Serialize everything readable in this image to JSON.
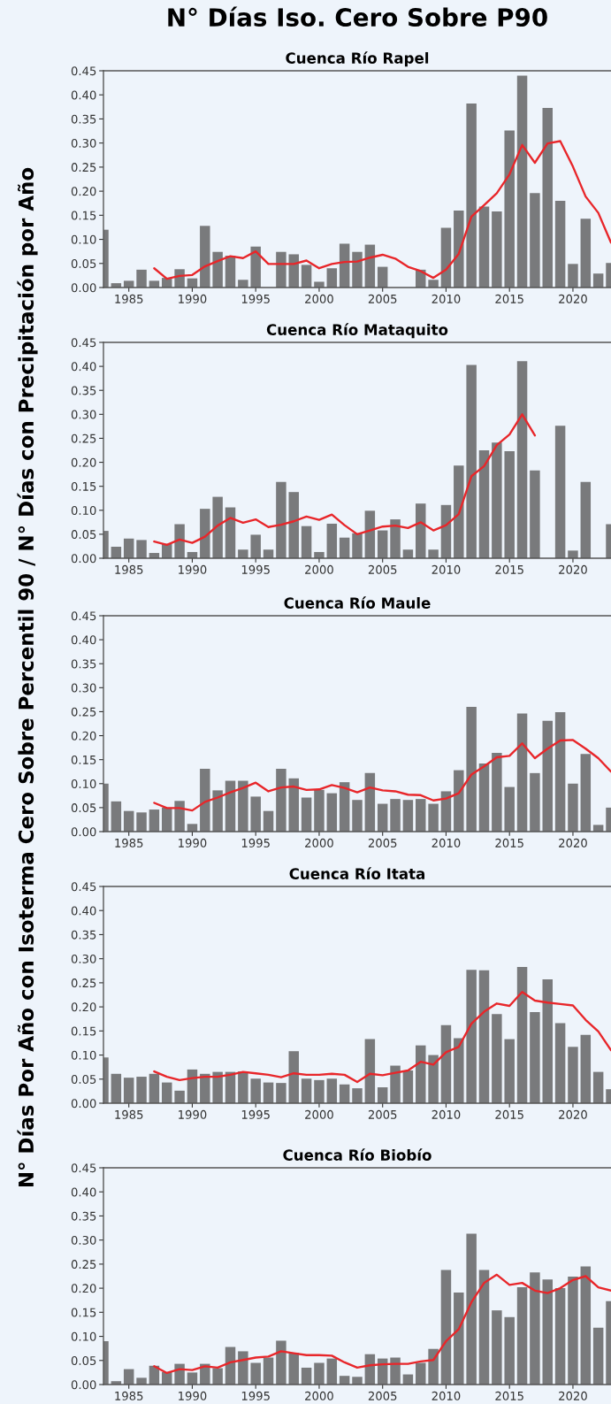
{
  "chart_data": [
    {
      "type": "bar",
      "title": "N° Días Iso. Cero Sobre P90",
      "subtitle": "Cuenca Río Rapel",
      "x": [
        1983,
        1984,
        1985,
        1986,
        1987,
        1988,
        1989,
        1990,
        1991,
        1992,
        1993,
        1994,
        1995,
        1996,
        1997,
        1998,
        1999,
        2000,
        2001,
        2002,
        2003,
        2004,
        2005,
        2006,
        2007,
        2008,
        2009,
        2010,
        2011,
        2012,
        2013,
        2014,
        2015,
        2016,
        2017,
        2018,
        2019,
        2020,
        2021,
        2022,
        2023
      ],
      "series": [
        {
          "color": "#797a7c",
          "values": [
            0.12,
            0.009,
            0.014,
            0.037,
            0.014,
            0.02,
            0.038,
            0.019,
            0.128,
            0.074,
            0.066,
            0.016,
            0.085,
            null,
            0.074,
            0.069,
            0.047,
            0.012,
            0.04,
            0.091,
            0.074,
            0.089,
            0.043,
            null,
            null,
            0.037,
            0.016,
            0.124,
            0.16,
            0.382,
            0.168,
            0.158,
            0.326,
            0.44,
            0.196,
            0.373,
            0.18,
            0.049,
            0.143,
            0.029,
            0.051
          ]
        },
        {
          "type": "line",
          "color": "#e8262a",
          "values": [
            null,
            null,
            null,
            null,
            0.04,
            0.018,
            0.024,
            0.026,
            0.044,
            0.055,
            0.065,
            0.061,
            0.075,
            0.049,
            0.049,
            0.049,
            0.056,
            0.04,
            0.049,
            0.053,
            0.054,
            0.062,
            0.068,
            0.06,
            0.043,
            0.034,
            0.02,
            0.037,
            0.07,
            0.147,
            0.171,
            0.196,
            0.235,
            0.296,
            0.259,
            0.299,
            0.304,
            0.251,
            0.189,
            0.155,
            0.093
          ]
        }
      ],
      "xlim": [
        1983,
        2023
      ],
      "xticks": [
        1985,
        1990,
        1995,
        2000,
        2005,
        2010,
        2015,
        2020
      ],
      "ylim": [
        0,
        0.45
      ],
      "yticks": [
        {
          "value": 0,
          "label": "0.00"
        },
        {
          "value": 0.05,
          "label": "0.05"
        },
        {
          "value": 0.1,
          "label": "0.10"
        },
        {
          "value": 0.15,
          "label": "0.15"
        },
        {
          "value": 0.2,
          "label": "0.20"
        },
        {
          "value": 0.25,
          "label": "0.25"
        },
        {
          "value": 0.3,
          "label": "0.30"
        },
        {
          "value": 0.35,
          "label": "0.35"
        },
        {
          "value": 0.4,
          "label": "0.40"
        },
        {
          "value": 0.45,
          "label": "0.45"
        }
      ]
    },
    {
      "type": "bar",
      "title": "Cuenca Río Mataquito",
      "x": [
        1983,
        1984,
        1985,
        1986,
        1987,
        1988,
        1989,
        1990,
        1991,
        1992,
        1993,
        1994,
        1995,
        1996,
        1997,
        1998,
        1999,
        2000,
        2001,
        2002,
        2003,
        2004,
        2005,
        2006,
        2007,
        2008,
        2009,
        2010,
        2011,
        2012,
        2013,
        2014,
        2015,
        2016,
        2017,
        2018,
        2019,
        2020,
        2021,
        2022,
        2023
      ],
      "series": [
        {
          "color": "#797a7c",
          "values": [
            0.057,
            0.024,
            0.041,
            0.038,
            0.011,
            0.03,
            0.071,
            0.013,
            0.103,
            0.128,
            0.106,
            0.018,
            0.049,
            0.018,
            0.159,
            0.138,
            0.067,
            0.013,
            0.072,
            0.043,
            0.052,
            0.099,
            0.058,
            0.081,
            0.018,
            0.114,
            0.018,
            0.111,
            0.193,
            0.403,
            0.225,
            0.241,
            0.223,
            0.411,
            0.183,
            null,
            0.276,
            0.016,
            0.159,
            null,
            0.071
          ]
        },
        {
          "type": "line",
          "color": "#e8262a",
          "values": [
            null,
            null,
            null,
            null,
            0.035,
            0.028,
            0.039,
            0.032,
            0.045,
            0.068,
            0.084,
            0.074,
            0.081,
            0.065,
            0.07,
            0.077,
            0.087,
            0.08,
            0.091,
            0.069,
            0.05,
            0.058,
            0.066,
            0.068,
            0.063,
            0.075,
            0.058,
            0.069,
            0.092,
            0.171,
            0.192,
            0.236,
            0.258,
            0.3,
            0.256,
            null,
            null,
            null,
            null,
            null,
            null
          ]
        }
      ],
      "xlim": [
        1983,
        2023
      ],
      "xticks": [
        1985,
        1990,
        1995,
        2000,
        2005,
        2010,
        2015,
        2020
      ],
      "ylim": [
        0,
        0.45
      ],
      "yticks": [
        {
          "value": 0,
          "label": "0.00"
        },
        {
          "value": 0.05,
          "label": "0.05"
        },
        {
          "value": 0.1,
          "label": "0.10"
        },
        {
          "value": 0.15,
          "label": "0.15"
        },
        {
          "value": 0.2,
          "label": "0.20"
        },
        {
          "value": 0.25,
          "label": "0.25"
        },
        {
          "value": 0.3,
          "label": "0.30"
        },
        {
          "value": 0.35,
          "label": "0.35"
        },
        {
          "value": 0.4,
          "label": "0.40"
        },
        {
          "value": 0.45,
          "label": "0.45"
        }
      ]
    },
    {
      "type": "bar",
      "title": "Cuenca Río Maule",
      "ylabel": "N° Días Por Año con Isoterma Cero Sobre Percentil 90 / N° Días con Precipitación por Año",
      "x": [
        1983,
        1984,
        1985,
        1986,
        1987,
        1988,
        1989,
        1990,
        1991,
        1992,
        1993,
        1994,
        1995,
        1996,
        1997,
        1998,
        1999,
        2000,
        2001,
        2002,
        2003,
        2004,
        2005,
        2006,
        2007,
        2008,
        2009,
        2010,
        2011,
        2012,
        2013,
        2014,
        2015,
        2016,
        2017,
        2018,
        2019,
        2020,
        2021,
        2022,
        2023
      ],
      "series": [
        {
          "color": "#797a7c",
          "values": [
            0.1,
            0.063,
            0.043,
            0.04,
            0.046,
            0.05,
            0.064,
            0.016,
            0.131,
            0.086,
            0.106,
            0.106,
            0.073,
            0.043,
            0.131,
            0.111,
            0.071,
            0.087,
            0.08,
            0.103,
            0.066,
            0.122,
            0.058,
            0.068,
            0.066,
            0.068,
            0.058,
            0.084,
            0.128,
            0.26,
            0.142,
            0.164,
            0.093,
            0.246,
            0.122,
            0.231,
            0.249,
            0.1,
            0.162,
            0.014,
            0.05
          ]
        },
        {
          "type": "line",
          "color": "#e8262a",
          "values": [
            null,
            null,
            null,
            null,
            0.06,
            0.049,
            0.049,
            0.044,
            0.062,
            0.071,
            0.082,
            0.091,
            0.102,
            0.084,
            0.092,
            0.094,
            0.087,
            0.088,
            0.097,
            0.091,
            0.082,
            0.092,
            0.086,
            0.084,
            0.077,
            0.076,
            0.065,
            0.069,
            0.08,
            0.119,
            0.136,
            0.155,
            0.158,
            0.184,
            0.153,
            0.173,
            0.19,
            0.191,
            0.173,
            0.153,
            0.125
          ]
        }
      ],
      "xlim": [
        1983,
        2023
      ],
      "xticks": [
        1985,
        1990,
        1995,
        2000,
        2005,
        2010,
        2015,
        2020
      ],
      "ylim": [
        0,
        0.45
      ],
      "yticks": [
        {
          "value": 0,
          "label": "0.00"
        },
        {
          "value": 0.05,
          "label": "0.05"
        },
        {
          "value": 0.1,
          "label": "0.10"
        },
        {
          "value": 0.15,
          "label": "0.15"
        },
        {
          "value": 0.2,
          "label": "0.20"
        },
        {
          "value": 0.25,
          "label": "0.25"
        },
        {
          "value": 0.3,
          "label": "0.30"
        },
        {
          "value": 0.35,
          "label": "0.35"
        },
        {
          "value": 0.4,
          "label": "0.40"
        },
        {
          "value": 0.45,
          "label": "0.45"
        }
      ]
    },
    {
      "type": "bar",
      "title": "Cuenca Río Itata",
      "x": [
        1983,
        1984,
        1985,
        1986,
        1987,
        1988,
        1989,
        1990,
        1991,
        1992,
        1993,
        1994,
        1995,
        1996,
        1997,
        1998,
        1999,
        2000,
        2001,
        2002,
        2003,
        2004,
        2005,
        2006,
        2007,
        2008,
        2009,
        2010,
        2011,
        2012,
        2013,
        2014,
        2015,
        2016,
        2017,
        2018,
        2019,
        2020,
        2021,
        2022,
        2023
      ],
      "series": [
        {
          "color": "#797a7c",
          "values": [
            0.095,
            0.061,
            0.053,
            0.055,
            0.061,
            0.043,
            0.026,
            0.07,
            0.061,
            0.065,
            0.065,
            0.066,
            0.051,
            0.043,
            0.042,
            0.108,
            0.051,
            0.048,
            0.051,
            0.039,
            0.031,
            0.133,
            0.033,
            0.078,
            0.068,
            0.12,
            0.1,
            0.162,
            0.135,
            0.277,
            0.276,
            0.185,
            0.133,
            0.283,
            0.189,
            0.257,
            0.166,
            0.117,
            0.142,
            0.065,
            0.029
          ]
        },
        {
          "type": "line",
          "color": "#e8262a",
          "values": [
            null,
            null,
            null,
            null,
            0.066,
            0.055,
            0.048,
            0.052,
            0.055,
            0.055,
            0.059,
            0.065,
            0.062,
            0.059,
            0.054,
            0.062,
            0.059,
            0.059,
            0.061,
            0.059,
            0.044,
            0.061,
            0.058,
            0.063,
            0.068,
            0.086,
            0.08,
            0.106,
            0.117,
            0.165,
            0.19,
            0.207,
            0.202,
            0.231,
            0.213,
            0.209,
            0.206,
            0.203,
            0.173,
            0.149,
            0.11
          ]
        }
      ],
      "xlim": [
        1983,
        2023
      ],
      "xticks": [
        1985,
        1990,
        1995,
        2000,
        2005,
        2010,
        2015,
        2020
      ],
      "ylim": [
        0,
        0.45
      ],
      "yticks": [
        {
          "value": 0,
          "label": "0.00"
        },
        {
          "value": 0.05,
          "label": "0.05"
        },
        {
          "value": 0.1,
          "label": "0.10"
        },
        {
          "value": 0.15,
          "label": "0.15"
        },
        {
          "value": 0.2,
          "label": "0.20"
        },
        {
          "value": 0.25,
          "label": "0.25"
        },
        {
          "value": 0.3,
          "label": "0.30"
        },
        {
          "value": 0.35,
          "label": "0.35"
        },
        {
          "value": 0.4,
          "label": "0.40"
        },
        {
          "value": 0.45,
          "label": "0.45"
        }
      ]
    },
    {
      "type": "bar",
      "title": "Cuenca Río Biobío",
      "x": [
        1983,
        1984,
        1985,
        1986,
        1987,
        1988,
        1989,
        1990,
        1991,
        1992,
        1993,
        1994,
        1995,
        1996,
        1997,
        1998,
        1999,
        2000,
        2001,
        2002,
        2003,
        2004,
        2005,
        2006,
        2007,
        2008,
        2009,
        2010,
        2011,
        2012,
        2013,
        2014,
        2015,
        2016,
        2017,
        2018,
        2019,
        2020,
        2021,
        2022,
        2023
      ],
      "series": [
        {
          "color": "#797a7c",
          "values": [
            0.09,
            0.007,
            0.032,
            0.014,
            0.039,
            0.026,
            0.043,
            0.025,
            0.043,
            0.034,
            0.078,
            0.069,
            0.045,
            0.056,
            0.091,
            0.066,
            0.035,
            0.045,
            0.054,
            0.018,
            0.016,
            0.063,
            0.054,
            0.056,
            0.021,
            0.045,
            0.074,
            0.238,
            0.191,
            0.313,
            0.238,
            0.154,
            0.14,
            0.202,
            0.233,
            0.218,
            0.2,
            0.224,
            0.245,
            0.118,
            0.173
          ]
        },
        {
          "type": "line",
          "color": "#e8262a",
          "values": [
            null,
            null,
            null,
            null,
            0.038,
            0.024,
            0.032,
            0.03,
            0.038,
            0.035,
            0.046,
            0.051,
            0.056,
            0.058,
            0.069,
            0.065,
            0.061,
            0.061,
            0.06,
            0.046,
            0.035,
            0.04,
            0.042,
            0.043,
            0.043,
            0.048,
            0.051,
            0.09,
            0.115,
            0.171,
            0.211,
            0.228,
            0.207,
            0.211,
            0.195,
            0.19,
            0.2,
            0.217,
            0.225,
            0.202,
            0.195
          ]
        }
      ],
      "xlim": [
        1983,
        2023
      ],
      "xticks": [
        1985,
        1990,
        1995,
        2000,
        2005,
        2010,
        2015,
        2020
      ],
      "ylim": [
        0,
        0.45
      ],
      "yticks": [
        {
          "value": 0,
          "label": "0.00"
        },
        {
          "value": 0.05,
          "label": "0.05"
        },
        {
          "value": 0.1,
          "label": "0.10"
        },
        {
          "value": 0.15,
          "label": "0.15"
        },
        {
          "value": 0.2,
          "label": "0.20"
        },
        {
          "value": 0.25,
          "label": "0.25"
        },
        {
          "value": 0.3,
          "label": "0.30"
        },
        {
          "value": 0.35,
          "label": "0.35"
        },
        {
          "value": 0.4,
          "label": "0.40"
        },
        {
          "value": 0.45,
          "label": "0.45"
        }
      ]
    }
  ]
}
